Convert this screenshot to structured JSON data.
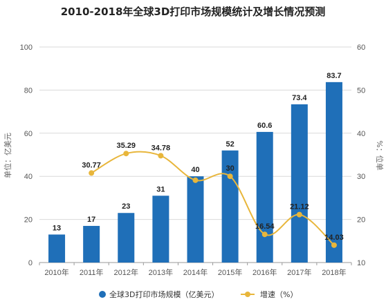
{
  "chart_data": {
    "type": "bar",
    "title": "2010-2018年全球3D打印市场规模统计及增长情况预测",
    "categories": [
      "2010年",
      "2011年",
      "2012年",
      "2013年",
      "2014年",
      "2015年",
      "2016年",
      "2017年",
      "2018年"
    ],
    "series": [
      {
        "name": "全球3D打印市场规模（亿美元）",
        "type": "bar",
        "axis": "left",
        "color": "#1f6fb8",
        "values": [
          13,
          17,
          23,
          31,
          40,
          52,
          60.6,
          73.4,
          83.7
        ],
        "labels": [
          "13",
          "17",
          "23",
          "31",
          "40",
          "52",
          "60.6",
          "73.4",
          "83.7"
        ]
      },
      {
        "name": "增速（%）",
        "type": "line",
        "axis": "right",
        "color": "#e8b63b",
        "values": [
          null,
          30.77,
          35.29,
          34.78,
          29.1,
          30,
          16.54,
          21.12,
          14.03
        ],
        "labels": [
          "",
          "30.77",
          "35.29",
          "34.78",
          "",
          "30",
          "16.54",
          "21.12",
          "14.03"
        ]
      }
    ],
    "ylabel": "单位：亿美元",
    "ylabel_right": "%：位单",
    "ylim": [
      0,
      100
    ],
    "ylim_right": [
      10,
      60
    ],
    "yticks": [
      "0",
      "20",
      "40",
      "60",
      "80",
      "100"
    ],
    "yticks_right": [
      "10",
      "20",
      "30",
      "40",
      "50",
      "60"
    ],
    "grid": true,
    "legend_position": "bottom-center"
  }
}
